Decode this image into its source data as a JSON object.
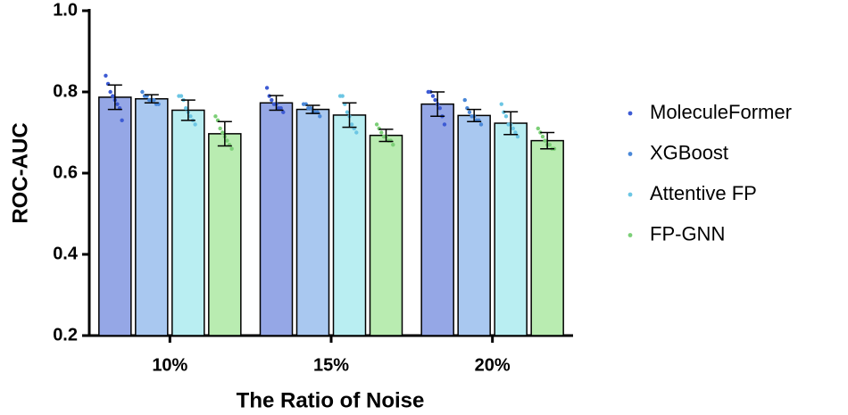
{
  "chart_data": {
    "type": "bar",
    "y_label": "ROC-AUC",
    "x_label": "The Ratio of Noise",
    "categories": [
      "10%",
      "15%",
      "20%"
    ],
    "ylim": [
      0.2,
      1.0
    ],
    "yticks": [
      0.2,
      0.4,
      0.6,
      0.8,
      {
        "value": 1.0,
        "label": "1.0"
      }
    ],
    "series": [
      {
        "name": "MoleculeFormer",
        "color": "#95a7e6",
        "point_color": "#3d5bd4",
        "values": [
          0.787,
          0.773,
          0.77
        ],
        "errors": [
          0.03,
          0.018,
          0.03
        ],
        "points": [
          [
            0.84,
            0.82,
            0.8,
            0.79,
            0.78,
            0.77,
            0.76,
            0.73
          ],
          [
            0.81,
            0.79,
            0.78,
            0.77,
            0.77,
            0.76,
            0.76,
            0.75
          ],
          [
            0.8,
            0.8,
            0.79,
            0.78,
            0.77,
            0.76,
            0.74,
            0.72
          ]
        ]
      },
      {
        "name": "XGBoost",
        "color": "#a9c8f0",
        "point_color": "#4a88d8",
        "values": [
          0.783,
          0.757,
          0.742
        ],
        "errors": [
          0.01,
          0.01,
          0.015
        ],
        "points": [
          [
            0.8,
            0.79,
            0.79,
            0.78,
            0.78,
            0.78,
            0.77,
            0.77
          ],
          [
            0.77,
            0.77,
            0.76,
            0.76,
            0.75,
            0.75,
            0.75,
            0.74
          ],
          [
            0.78,
            0.76,
            0.75,
            0.74,
            0.74,
            0.73,
            0.73,
            0.72
          ]
        ]
      },
      {
        "name": "Attentive FP",
        "color": "#b9eef2",
        "point_color": "#6cc6e4",
        "values": [
          0.755,
          0.743,
          0.723
        ],
        "errors": [
          0.025,
          0.03,
          0.028
        ],
        "points": [
          [
            0.79,
            0.79,
            0.78,
            0.76,
            0.75,
            0.74,
            0.73,
            0.72
          ],
          [
            0.79,
            0.79,
            0.77,
            0.75,
            0.74,
            0.72,
            0.71,
            0.7
          ],
          [
            0.77,
            0.75,
            0.74,
            0.72,
            0.72,
            0.71,
            0.7,
            0.69
          ]
        ]
      },
      {
        "name": "FP-GNN",
        "color": "#b9ecb1",
        "point_color": "#7ccf77",
        "values": [
          0.697,
          0.693,
          0.68
        ],
        "errors": [
          0.03,
          0.015,
          0.02
        ],
        "points": [
          [
            0.74,
            0.73,
            0.71,
            0.7,
            0.69,
            0.68,
            0.67,
            0.66
          ],
          [
            0.72,
            0.71,
            0.7,
            0.69,
            0.69,
            0.68,
            0.68,
            0.67
          ],
          [
            0.71,
            0.7,
            0.69,
            0.68,
            0.67,
            0.67,
            0.66,
            0.66
          ]
        ]
      }
    ]
  }
}
